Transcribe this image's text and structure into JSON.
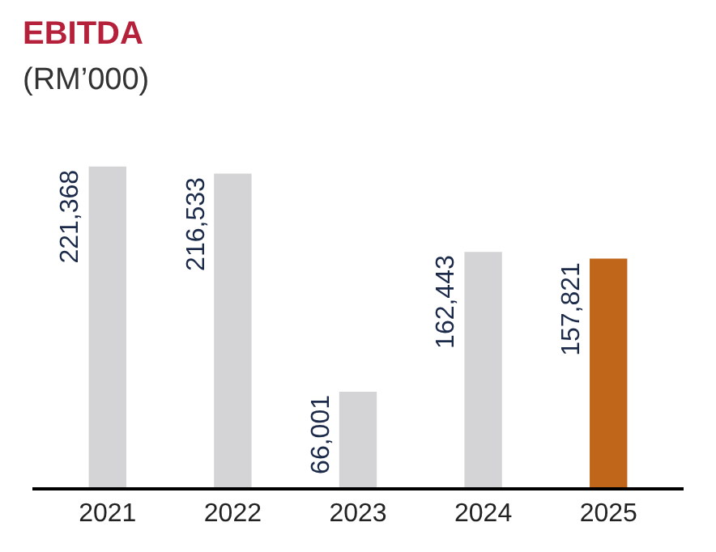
{
  "chart_data": {
    "type": "bar",
    "title": "EBITDA",
    "subtitle": "(RM’000)",
    "categories": [
      "2021",
      "2022",
      "2023",
      "2024",
      "2025"
    ],
    "values": [
      221368,
      216533,
      66001,
      162443,
      157821
    ],
    "colors": [
      "#d4d4d6",
      "#d4d4d6",
      "#d4d4d6",
      "#d4d4d6",
      "#c0661a"
    ],
    "value_labels": [
      "221,368",
      "216,533",
      "66,001",
      "162,443",
      "157,821"
    ]
  }
}
